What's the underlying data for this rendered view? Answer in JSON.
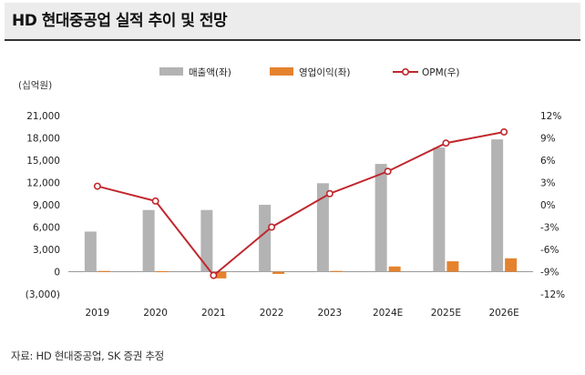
{
  "title": "HD 현대중공업 실적 추이 및 전망",
  "source": "자료: HD 현대중공업, SK 증권 추정",
  "chart_data": {
    "type": "bar+line",
    "unit_label": "(십억원)",
    "categories": [
      "2019",
      "2020",
      "2021",
      "2022",
      "2023",
      "2024E",
      "2025E",
      "2026E"
    ],
    "series": [
      {
        "name": "매출액(좌)",
        "type": "bar",
        "axis": "left",
        "color": "#b3b3b3",
        "values": [
          5400,
          8300,
          8300,
          9000,
          11900,
          14500,
          16700,
          17800
        ]
      },
      {
        "name": "영업이익(좌)",
        "type": "bar",
        "axis": "left",
        "color": "#e5822e",
        "values": [
          100,
          80,
          -900,
          -300,
          100,
          700,
          1400,
          1800
        ]
      },
      {
        "name": "OPM(우)",
        "type": "line",
        "axis": "right",
        "color": "#c0272d",
        "values": [
          2.5,
          0.5,
          -9.5,
          -3.0,
          1.5,
          4.5,
          8.3,
          9.8
        ]
      }
    ],
    "left_axis": {
      "ylim": [
        -3000,
        21000
      ],
      "ticks": [
        21000,
        18000,
        15000,
        12000,
        9000,
        6000,
        3000,
        0,
        -3000
      ],
      "tick_labels": [
        "21,000",
        "18,000",
        "15,000",
        "12,000",
        "9,000",
        "6,000",
        "3,000",
        "0",
        "(3,000)"
      ]
    },
    "right_axis": {
      "ylim": [
        -12,
        12
      ],
      "ticks": [
        12,
        9,
        6,
        3,
        0,
        -3,
        -6,
        -9,
        -12
      ],
      "tick_labels": [
        "12%",
        "9%",
        "6%",
        "3%",
        "0%",
        "-3%",
        "-6%",
        "-9%",
        "-12%"
      ]
    },
    "legend_position": "top",
    "grid": false
  }
}
